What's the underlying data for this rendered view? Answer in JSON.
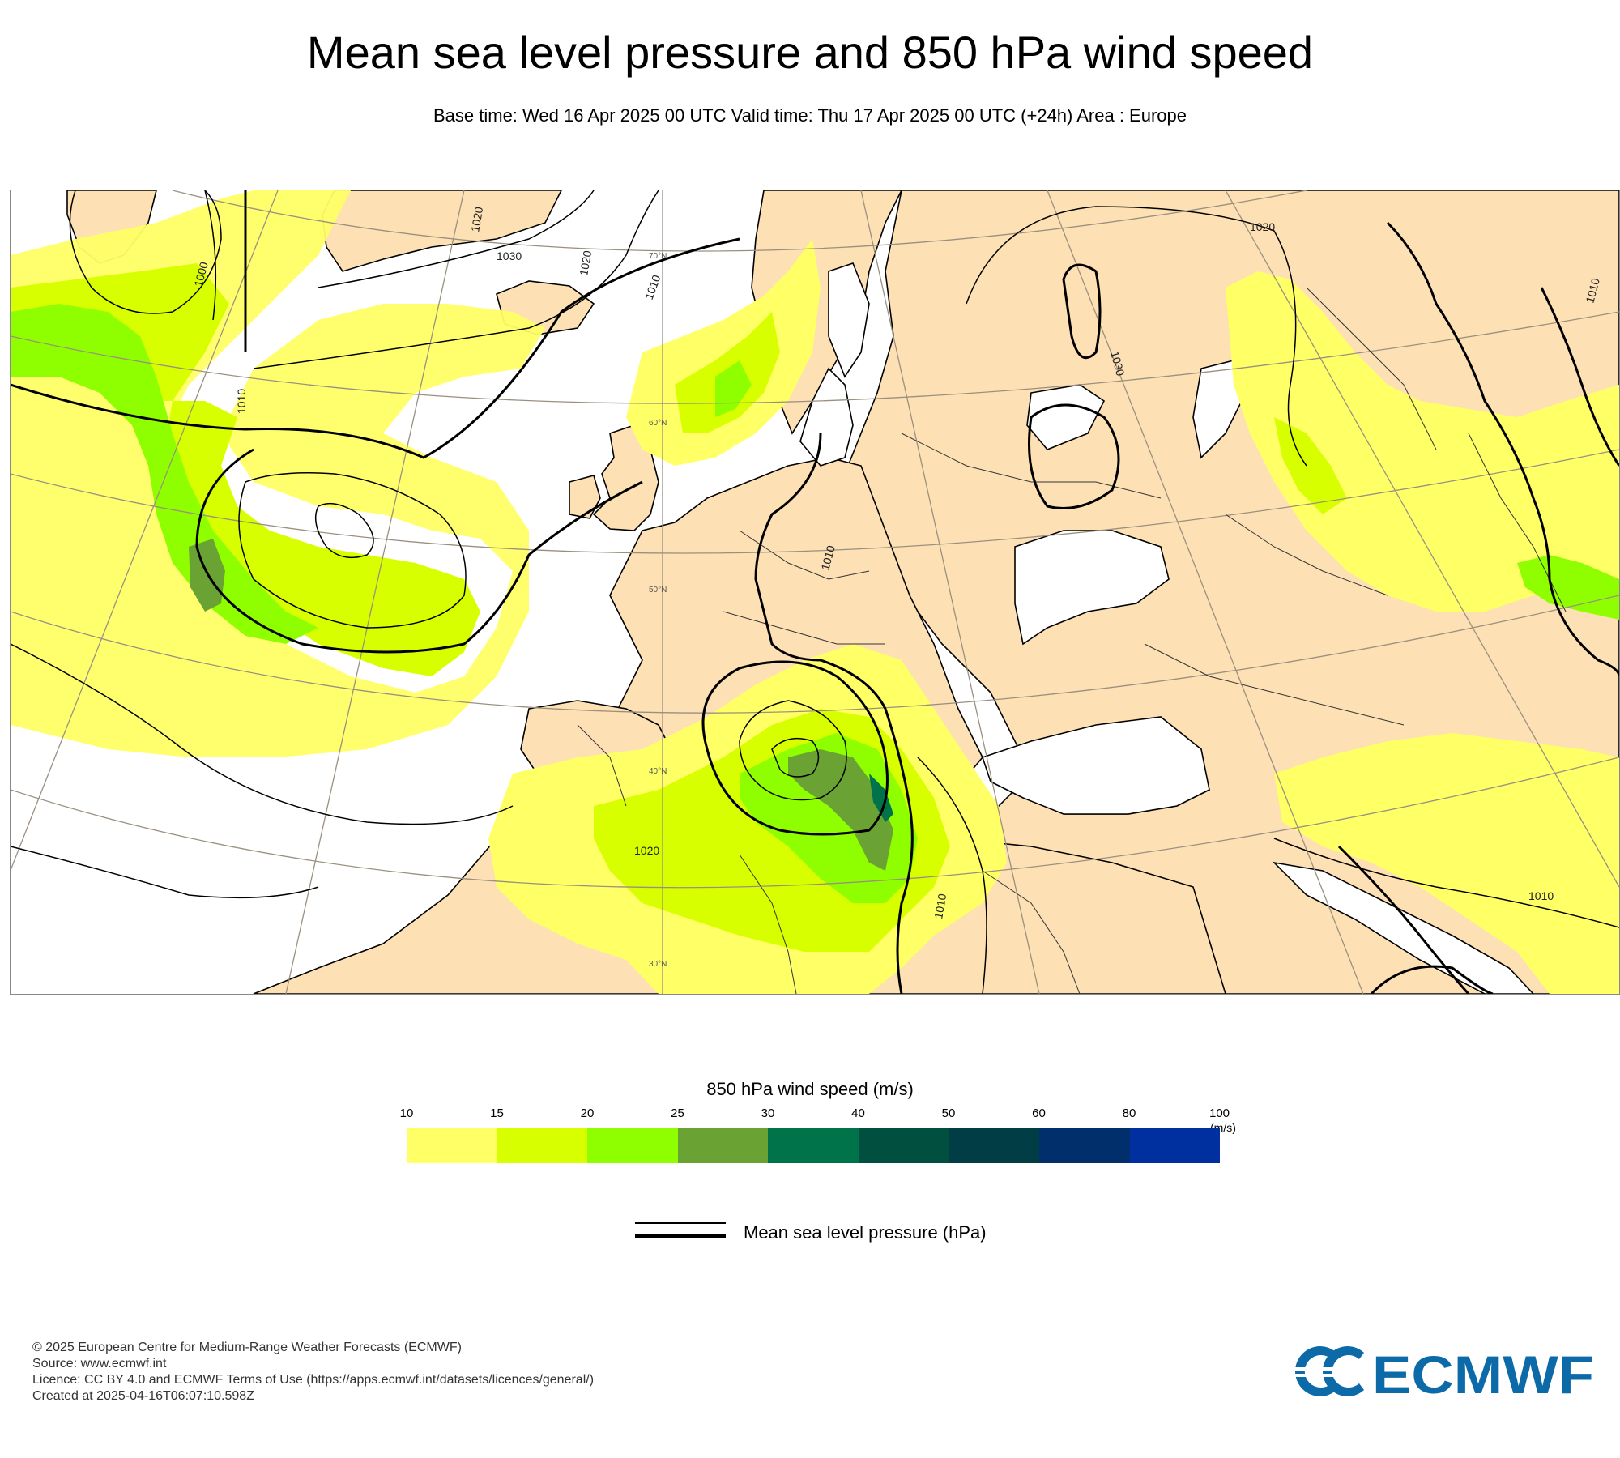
{
  "title": "Mean sea level pressure and 850 hPa wind speed",
  "subtitle": "Base time: Wed 16 Apr 2025 00 UTC Valid time: Thu 17 Apr 2025 00 UTC (+24h) Area : Europe",
  "map": {
    "isobar_labels": [
      "1030",
      "1020",
      "1010",
      "1000",
      "1010",
      "1010",
      "1020",
      "1030",
      "1020",
      "1010",
      "1010",
      "1010",
      "1020"
    ],
    "latitude_labels": [
      "70°N",
      "60°N",
      "50°N",
      "40°N",
      "30°N"
    ],
    "colors": {
      "land": "#fde0b3",
      "sea": "#ffffff",
      "isobar": "#000000",
      "graticule": "#9a9080"
    }
  },
  "legend": {
    "title": "850 hPa wind speed (m/s)",
    "ticks": [
      "10",
      "15",
      "20",
      "25",
      "30",
      "40",
      "50",
      "60",
      "80",
      "100"
    ],
    "unit": "(m/s)",
    "colors": [
      "#ffff66",
      "#d8ff00",
      "#8fff00",
      "#6aa333",
      "#00734a",
      "#004f3f",
      "#003d45",
      "#002f6b",
      "#00309f"
    ],
    "pressure_label": "Mean sea level pressure (hPa)"
  },
  "footer": {
    "line1": "© 2025 European Centre for Medium-Range Weather Forecasts (ECMWF)",
    "line2": "Source: www.ecmwf.int",
    "line3": "Licence: CC BY 4.0 and ECMWF Terms of Use (https://apps.ecmwf.int/datasets/licences/general/)",
    "line4": "Created at 2025-04-16T06:07:10.598Z"
  },
  "logo": {
    "text": "ECMWF",
    "color": "#0d6aa8"
  }
}
